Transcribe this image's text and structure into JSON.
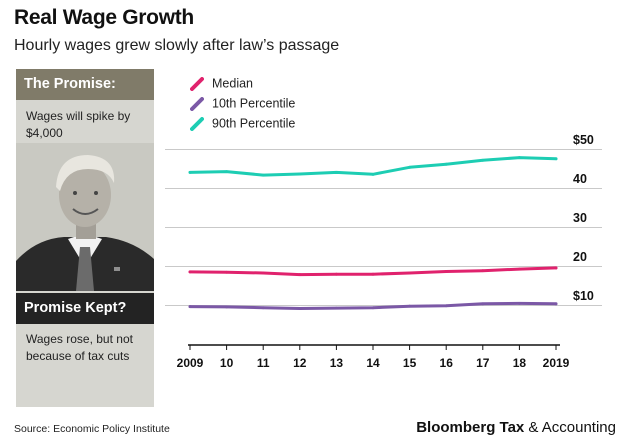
{
  "header": {
    "title": "Real Wage Growth",
    "subtitle": "Hourly wages grew slowly after law’s passage"
  },
  "sidebar": {
    "promise_heading": "The Promise:",
    "promise_text": "Wages will spike by $4,000",
    "kept_heading": "Promise Kept?",
    "kept_text": "Wages rose, but not because of tax cuts"
  },
  "footer": {
    "source": "Source: Economic Policy Institute",
    "brand_bold": "Bloomberg Tax",
    "brand_rest": " & Accounting"
  },
  "colors": {
    "median": "#e0226d",
    "p10": "#7b58a6",
    "p90": "#1dcdb3"
  },
  "chart_data": {
    "type": "line",
    "title": "Real Wage Growth",
    "subtitle": "Hourly wages grew slowly after law’s passage",
    "xlabel": "",
    "ylabel": "",
    "x": [
      2009,
      2010,
      2011,
      2012,
      2013,
      2014,
      2015,
      2016,
      2017,
      2018,
      2019
    ],
    "x_tick_labels": [
      "2009",
      "10",
      "11",
      "12",
      "13",
      "14",
      "15",
      "16",
      "17",
      "18",
      "2019"
    ],
    "y_ticks": [
      10,
      20,
      30,
      40,
      50
    ],
    "y_tick_labels": [
      "$10",
      "20",
      "30",
      "40",
      "$50"
    ],
    "ylim": [
      0,
      55
    ],
    "legend_position": "top-left",
    "grid": "horizontal",
    "series": [
      {
        "name": "Median",
        "color": "#e0226d",
        "values": [
          18.5,
          18.4,
          18.2,
          17.8,
          17.9,
          17.9,
          18.2,
          18.6,
          18.8,
          19.2,
          19.5
        ]
      },
      {
        "name": "10th Percentile",
        "color": "#7b58a6",
        "values": [
          9.6,
          9.5,
          9.3,
          9.1,
          9.2,
          9.3,
          9.7,
          9.8,
          10.3,
          10.4,
          10.3
        ]
      },
      {
        "name": "90th Percentile",
        "color": "#1dcdb3",
        "values": [
          44.0,
          44.2,
          43.3,
          43.6,
          44.0,
          43.5,
          45.3,
          46.1,
          47.1,
          47.8,
          47.5
        ]
      }
    ]
  }
}
